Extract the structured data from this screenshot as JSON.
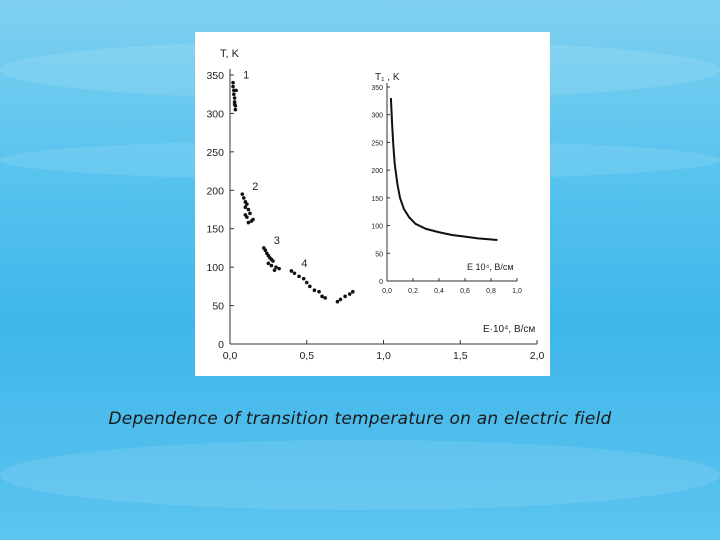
{
  "caption": "Dependence of transition temperature  on an electric field",
  "chart_data": [
    {
      "type": "scatter",
      "ylabel": "T, K",
      "xlabel": "E·10⁴, B/см",
      "xlim": [
        0,
        2.0
      ],
      "ylim": [
        0,
        350
      ],
      "xticks": [
        "0,0",
        "0,5",
        "1,0",
        "1,5",
        "2,0"
      ],
      "yticks": [
        "0",
        "50",
        "100",
        "150",
        "200",
        "250",
        "300",
        "350"
      ],
      "grid": false,
      "series": [
        {
          "name": "1",
          "x": [
            0.02,
            0.02,
            0.025,
            0.025,
            0.03,
            0.03,
            0.035,
            0.035,
            0.04,
            0.03
          ],
          "y": [
            340,
            335,
            330,
            325,
            320,
            315,
            310,
            305,
            330,
            312
          ]
        },
        {
          "name": "2",
          "x": [
            0.08,
            0.09,
            0.1,
            0.11,
            0.1,
            0.12,
            0.13,
            0.1,
            0.11,
            0.14,
            0.15,
            0.12
          ],
          "y": [
            195,
            190,
            185,
            182,
            178,
            175,
            170,
            168,
            165,
            160,
            162,
            158
          ]
        },
        {
          "name": "3",
          "x": [
            0.22,
            0.23,
            0.24,
            0.25,
            0.26,
            0.27,
            0.28,
            0.25,
            0.27,
            0.3,
            0.32,
            0.29
          ],
          "y": [
            125,
            122,
            118,
            115,
            112,
            110,
            108,
            105,
            102,
            100,
            98,
            96
          ]
        },
        {
          "name": "4",
          "x": [
            0.4,
            0.42,
            0.45,
            0.48,
            0.5,
            0.52,
            0.55,
            0.58,
            0.6,
            0.62,
            0.7,
            0.72,
            0.75,
            0.78,
            0.8
          ],
          "y": [
            95,
            92,
            88,
            85,
            80,
            75,
            70,
            68,
            62,
            60,
            55,
            58,
            62,
            65,
            68
          ]
        }
      ]
    },
    {
      "type": "line",
      "ylabel": "T₁ , K",
      "xlabel": "E 10⁴, B/см",
      "xlim": [
        0,
        1.0
      ],
      "ylim": [
        0,
        350
      ],
      "xticks": [
        "0,0",
        "0,2",
        "0,4",
        "0,6",
        "0,8",
        "1,0"
      ],
      "yticks": [
        "0",
        "50",
        "100",
        "150",
        "200",
        "250",
        "300",
        "350"
      ],
      "grid": false,
      "series": [
        {
          "x": [
            0.03,
            0.04,
            0.05,
            0.06,
            0.08,
            0.1,
            0.13,
            0.17,
            0.22,
            0.3,
            0.4,
            0.5,
            0.6,
            0.7,
            0.85
          ],
          "y": [
            330,
            280,
            240,
            210,
            175,
            150,
            130,
            115,
            103,
            94,
            88,
            83,
            80,
            77,
            74
          ]
        }
      ]
    }
  ]
}
